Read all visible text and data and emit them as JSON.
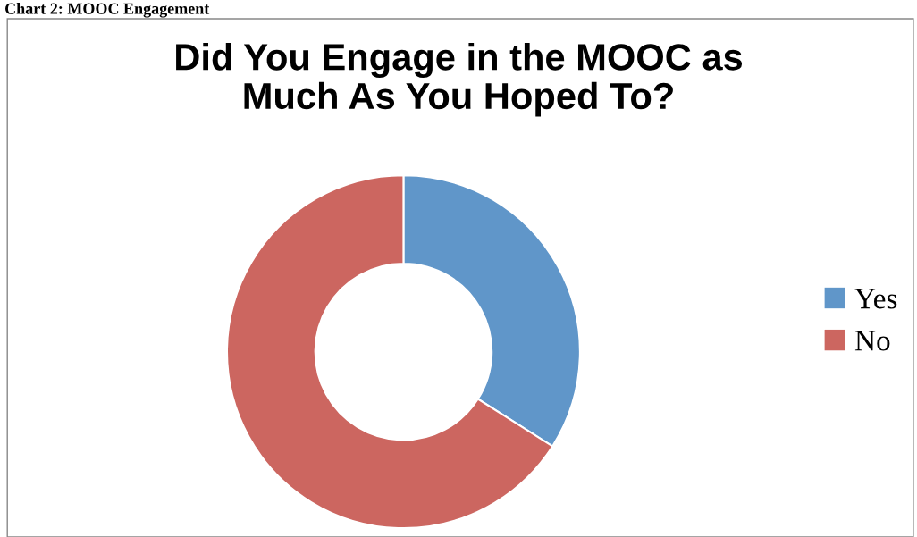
{
  "chart_data": {
    "type": "donut",
    "title": "Did You Engage in the MOOC as\nMuch As You Hoped To?",
    "annotations": [
      "Chart 2: MOOC Engagement"
    ],
    "categories": [
      "Yes",
      "No"
    ],
    "values": [
      34,
      66
    ],
    "colors": [
      "#6096c9",
      "#cc6660"
    ],
    "legend": "right"
  }
}
